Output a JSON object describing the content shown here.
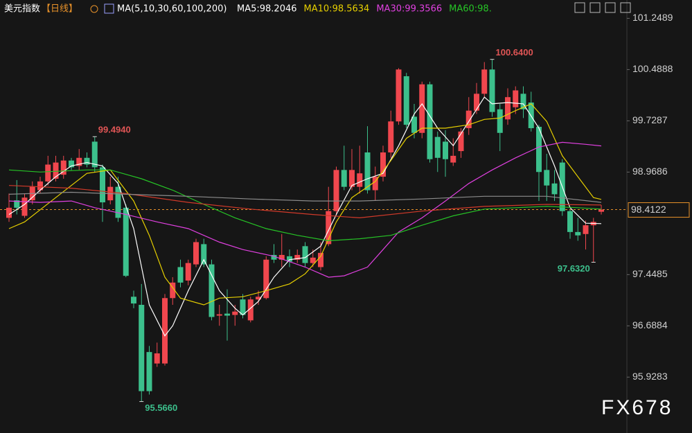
{
  "chart_data": {
    "type": "candlestick",
    "title": "美元指数",
    "period": "【日线】",
    "indicator": "MA(5,10,30,60,100,200)",
    "watermark": "FX678",
    "up_color": "#f0474e",
    "down_color": "#3cc08c",
    "grid": false,
    "ylim": [
      95.5,
      101.5
    ],
    "yticks": [
      101.2489,
      100.4888,
      99.7287,
      98.9686,
      97.4485,
      96.6884,
      95.9283
    ],
    "last_price": {
      "value": 98.4122,
      "label": "98.4122",
      "color": "#e8922a"
    },
    "open": [
      98.29,
      98.55,
      98.32,
      98.55,
      98.7,
      98.83,
      98.87,
      98.93,
      99.14,
      99.06,
      99.18,
      99.42,
      99.04,
      98.55,
      98.75,
      98.44,
      97.12,
      97.0,
      96.3,
      96.13,
      96.13,
      97.1,
      97.56,
      97.36,
      97.6,
      97.9,
      97.6,
      96.84,
      96.87,
      96.85,
      97.08,
      96.77,
      97.08,
      97.1,
      97.74,
      97.67,
      97.72,
      97.67,
      97.87,
      97.62,
      97.56,
      97.9,
      98.39,
      99.0,
      98.75,
      98.75,
      99.26,
      98.7,
      98.9,
      99.26,
      99.72,
      100.39,
      99.79,
      99.55,
      100.27,
      99.49,
      99.42,
      99.11,
      99.28,
      99.62,
      99.88,
      100.13,
      100.49,
      99.9,
      99.75,
      99.93,
      100.13,
      100.0,
      99.64,
      99.0,
      98.8,
      99.11,
      98.39,
      98.08,
      98.05,
      98.18,
      98.38
    ],
    "high": [
      98.65,
      98.85,
      98.65,
      98.83,
      98.9,
      99.21,
      99.21,
      99.21,
      99.18,
      99.31,
      99.26,
      99.494,
      99.08,
      98.9,
      98.9,
      98.49,
      97.21,
      97.31,
      96.39,
      96.44,
      97.16,
      97.41,
      97.67,
      97.67,
      97.98,
      97.98,
      97.67,
      97.0,
      97.23,
      97.0,
      97.16,
      97.12,
      97.21,
      97.72,
      97.9,
      98.05,
      97.82,
      97.82,
      97.93,
      97.82,
      97.93,
      98.75,
      99.05,
      99.36,
      99.31,
      99.36,
      99.65,
      99.05,
      99.36,
      99.88,
      100.51,
      100.44,
      99.98,
      100.31,
      100.31,
      99.57,
      99.59,
      99.47,
      99.62,
      100.08,
      100.29,
      100.6,
      100.64,
      99.98,
      100.21,
      100.24,
      100.24,
      100.16,
      99.67,
      99.24,
      99.0,
      99.16,
      98.41,
      98.29,
      98.25,
      98.29,
      98.48
    ],
    "low": [
      98.23,
      98.34,
      98.29,
      98.49,
      98.65,
      98.77,
      98.83,
      98.87,
      99.0,
      99.0,
      99.04,
      98.97,
      98.23,
      98.49,
      98.23,
      97.41,
      96.95,
      95.566,
      95.67,
      96.08,
      96.1,
      97.0,
      97.26,
      97.29,
      97.56,
      97.56,
      96.77,
      96.69,
      96.47,
      96.69,
      96.8,
      96.74,
      97.0,
      97.08,
      97.62,
      97.56,
      97.56,
      97.62,
      97.56,
      97.56,
      97.51,
      97.87,
      98.34,
      98.7,
      98.7,
      98.65,
      98.65,
      98.55,
      98.83,
      99.18,
      99.67,
      99.62,
      99.47,
      99.47,
      99.11,
      98.97,
      98.9,
      99.06,
      99.18,
      99.52,
      99.83,
      100.08,
      99.79,
      99.28,
      99.67,
      99.83,
      99.77,
      99.57,
      98.54,
      98.54,
      98.54,
      98.32,
      97.98,
      97.95,
      97.82,
      97.632,
      98.34
    ],
    "close": [
      98.44,
      98.44,
      98.59,
      98.75,
      98.83,
      99.08,
      99.11,
      99.14,
      99.04,
      99.18,
      99.08,
      99.04,
      98.52,
      98.75,
      98.29,
      97.43,
      97.02,
      95.72,
      95.72,
      96.28,
      97.1,
      97.33,
      97.33,
      97.62,
      97.93,
      97.6,
      96.82,
      96.86,
      96.84,
      96.9,
      96.85,
      97.08,
      97.12,
      97.67,
      97.67,
      97.74,
      97.64,
      97.74,
      97.62,
      97.7,
      97.77,
      98.39,
      99.0,
      98.75,
      99.0,
      98.95,
      98.7,
      98.9,
      99.26,
      99.72,
      100.49,
      99.67,
      99.55,
      100.27,
      99.16,
      99.18,
      99.16,
      99.21,
      99.57,
      99.88,
      100.13,
      100.49,
      99.86,
      99.55,
      100.08,
      100.18,
      99.9,
      99.62,
      98.97,
      98.77,
      98.64,
      98.39,
      98.08,
      98.03,
      98.18,
      98.23,
      98.4122
    ],
    "series": [
      {
        "name": "MA5:98.2046",
        "color": "#ffffff",
        "x": [
          0,
          2,
          4,
          6,
          8,
          10,
          12,
          14,
          16,
          18,
          20,
          21,
          23,
          25,
          27,
          29,
          30,
          32,
          34,
          36,
          38,
          40,
          42,
          44,
          46,
          48,
          50,
          52,
          53,
          55,
          57,
          59,
          61,
          62,
          64,
          66,
          68,
          70,
          72,
          74,
          76
        ],
        "values": [
          98.34,
          98.49,
          98.7,
          98.9,
          99.06,
          99.11,
          99.06,
          98.8,
          98.13,
          97.0,
          96.54,
          96.69,
          97.21,
          97.67,
          97.21,
          96.95,
          96.85,
          97.05,
          97.41,
          97.67,
          97.7,
          97.87,
          98.34,
          98.77,
          98.87,
          98.95,
          99.36,
          99.83,
          99.98,
          99.62,
          99.36,
          99.72,
          100.08,
          99.98,
          100.0,
          99.98,
          99.62,
          99.06,
          98.44,
          98.21,
          98.2046
        ]
      },
      {
        "name": "MA10:98.5634",
        "color": "#e6cf00",
        "x": [
          0,
          2,
          6,
          10,
          13,
          16,
          18,
          20,
          22,
          25,
          27,
          30,
          33,
          36,
          38,
          40,
          42,
          44,
          47,
          49,
          51,
          53,
          56,
          59,
          61,
          63,
          65,
          67,
          69,
          71,
          73,
          75,
          76
        ],
        "values": [
          98.13,
          98.23,
          98.59,
          98.95,
          99.0,
          98.54,
          98.03,
          97.41,
          97.1,
          97.0,
          97.1,
          97.12,
          97.21,
          97.31,
          97.46,
          97.72,
          98.23,
          98.59,
          98.83,
          99.14,
          99.47,
          99.62,
          99.62,
          99.67,
          99.75,
          99.77,
          99.88,
          99.98,
          99.72,
          99.21,
          98.9,
          98.59,
          98.5634
        ]
      },
      {
        "name": "MA30:99.3566",
        "color": "#e040e0",
        "x": [
          0,
          4,
          8,
          11,
          15,
          19,
          23,
          27,
          30,
          34,
          38,
          41,
          43,
          46,
          48,
          50,
          53,
          56,
          59,
          62,
          65,
          68,
          71,
          74,
          76
        ],
        "values": [
          98.54,
          98.52,
          98.54,
          98.44,
          98.34,
          98.23,
          98.13,
          97.93,
          97.82,
          97.72,
          97.56,
          97.41,
          97.43,
          97.56,
          97.82,
          98.08,
          98.29,
          98.54,
          98.8,
          99.0,
          99.18,
          99.34,
          99.41,
          99.38,
          99.3566
        ]
      },
      {
        "name": "MA60:98.",
        "color": "#26c426",
        "x": [
          0,
          4,
          10,
          13,
          17,
          21,
          25,
          29,
          33,
          37,
          41,
          45,
          49,
          53,
          57,
          61,
          65,
          69,
          73,
          76
        ],
        "values": [
          99.0,
          98.97,
          99.0,
          99.0,
          98.87,
          98.7,
          98.49,
          98.29,
          98.13,
          98.03,
          97.95,
          97.98,
          98.03,
          98.18,
          98.32,
          98.42,
          98.44,
          98.46,
          98.44,
          98.42
        ]
      },
      {
        "color": "#d23a2a",
        "x": [
          0,
          8,
          15,
          23,
          31,
          39,
          45,
          53,
          61,
          69,
          76
        ],
        "values": [
          98.77,
          98.73,
          98.65,
          98.52,
          98.42,
          98.34,
          98.29,
          98.39,
          98.46,
          98.49,
          98.48
        ]
      },
      {
        "color": "#8c8c8c",
        "x": [
          0,
          8,
          15,
          23,
          31,
          39,
          45,
          53,
          61,
          69,
          76
        ],
        "values": [
          98.64,
          98.67,
          98.64,
          98.61,
          98.57,
          98.54,
          98.54,
          98.57,
          98.61,
          98.61,
          98.52
        ]
      }
    ],
    "annotations": [
      {
        "label": "99.4940",
        "value": 99.494,
        "index": 11,
        "color": "#e05555"
      },
      {
        "label": "95.5660",
        "value": 95.566,
        "index": 17,
        "color": "#3cc08c"
      },
      {
        "label": "100.6400",
        "value": 100.64,
        "index": 62,
        "color": "#e05555"
      },
      {
        "label": "97.6320",
        "value": 97.632,
        "index": 75,
        "color": "#3cc08c"
      }
    ]
  }
}
